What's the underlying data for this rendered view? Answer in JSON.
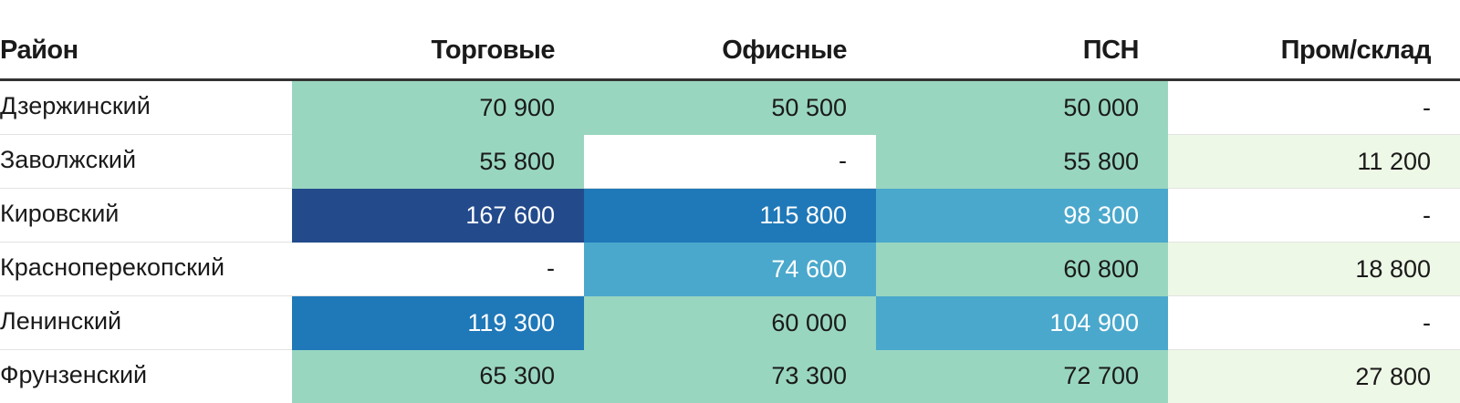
{
  "chart_data": {
    "type": "table",
    "columns": [
      "Район",
      "Торговые",
      "Офисные",
      "ПСН",
      "Пром/склад"
    ],
    "rows": [
      {
        "name": "Дзержинский",
        "values": [
          "70 900",
          "50 500",
          "50 000",
          "-"
        ]
      },
      {
        "name": "Заволжский",
        "values": [
          "55 800",
          "-",
          "55 800",
          "11 200"
        ]
      },
      {
        "name": "Кировский",
        "values": [
          "167 600",
          "115 800",
          "98 300",
          "-"
        ]
      },
      {
        "name": "Красноперекопский",
        "values": [
          "-",
          "74 600",
          "60 800",
          "18 800"
        ]
      },
      {
        "name": "Ленинский",
        "values": [
          "119 300",
          "60 000",
          "104 900",
          "-"
        ]
      },
      {
        "name": "Фрунзенский",
        "values": [
          "65 300",
          "73 300",
          "72 700",
          "27 800"
        ]
      }
    ],
    "cell_colors": [
      [
        "#99d6c0",
        "#99d6c0",
        "#99d6c0",
        "#ffffff"
      ],
      [
        "#99d6c0",
        "#ffffff",
        "#99d6c0",
        "#eef8e6"
      ],
      [
        "#234b8c",
        "#1f78b8",
        "#4aa8cc",
        "#ffffff"
      ],
      [
        "#ffffff",
        "#4aa8cc",
        "#99d6c0",
        "#eef8e6"
      ],
      [
        "#1f78b8",
        "#99d6c0",
        "#4aa8cc",
        "#ffffff"
      ],
      [
        "#99d6c0",
        "#99d6c0",
        "#99d6c0",
        "#eef8e6"
      ]
    ],
    "light_text_color": "#ffffff",
    "dark_text_color": "#1a1a1a"
  }
}
